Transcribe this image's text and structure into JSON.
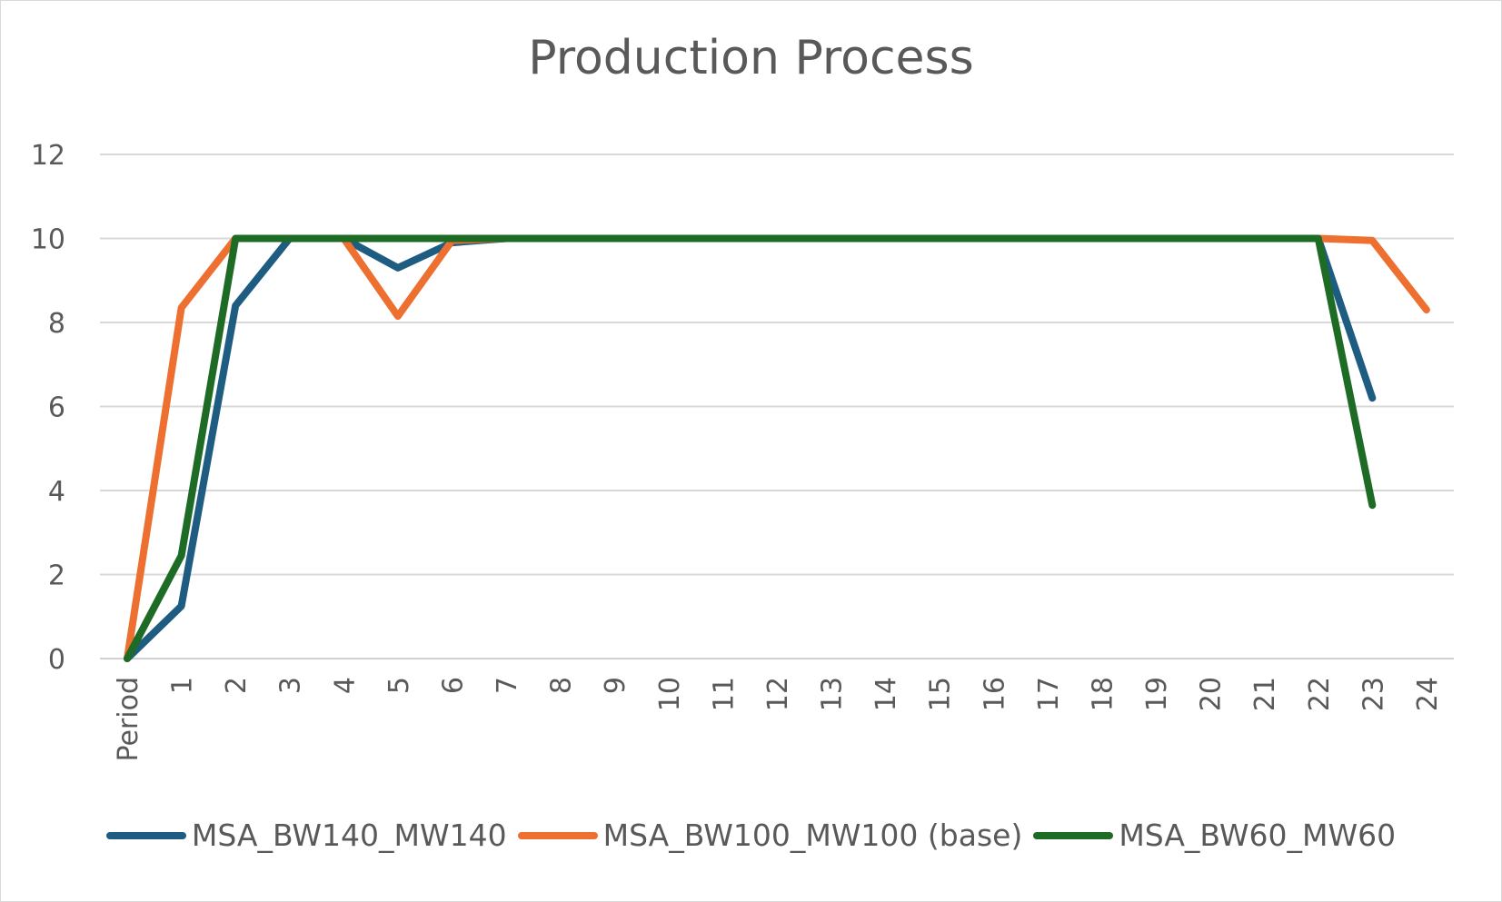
{
  "chart_data": {
    "type": "line",
    "title": "Production Process",
    "xlabel": "",
    "ylabel": "",
    "categories": [
      "Period",
      "1",
      "2",
      "3",
      "4",
      "5",
      "6",
      "7",
      "8",
      "9",
      "10",
      "11",
      "12",
      "13",
      "14",
      "15",
      "16",
      "17",
      "18",
      "19",
      "20",
      "21",
      "22",
      "23",
      "24"
    ],
    "ylim": [
      0,
      12
    ],
    "yticks": [
      "0",
      "2",
      "4",
      "6",
      "8",
      "10",
      "12"
    ],
    "grid": true,
    "legend_position": "bottom",
    "series": [
      {
        "name": "MSA_BW140_MW140",
        "color": "#1f5c82",
        "values": [
          0,
          1.25,
          8.4,
          10,
          10,
          9.3,
          9.9,
          10,
          10,
          10,
          10,
          10,
          10,
          10,
          10,
          10,
          10,
          10,
          10,
          10,
          10,
          10,
          10,
          6.2,
          null
        ]
      },
      {
        "name": "MSA_BW100_MW100 (base)",
        "color": "#ed7031",
        "values": [
          0,
          8.35,
          10,
          10,
          10,
          8.15,
          9.95,
          10,
          10,
          10,
          10,
          10,
          10,
          10,
          10,
          10,
          10,
          10,
          10,
          10,
          10,
          10,
          10,
          9.95,
          8.3
        ]
      },
      {
        "name": "MSA_BW60_MW60",
        "color": "#1d6b25",
        "values": [
          0,
          2.45,
          10,
          10,
          10,
          10,
          10,
          10,
          10,
          10,
          10,
          10,
          10,
          10,
          10,
          10,
          10,
          10,
          10,
          10,
          10,
          10,
          10,
          3.65,
          null
        ]
      }
    ]
  }
}
